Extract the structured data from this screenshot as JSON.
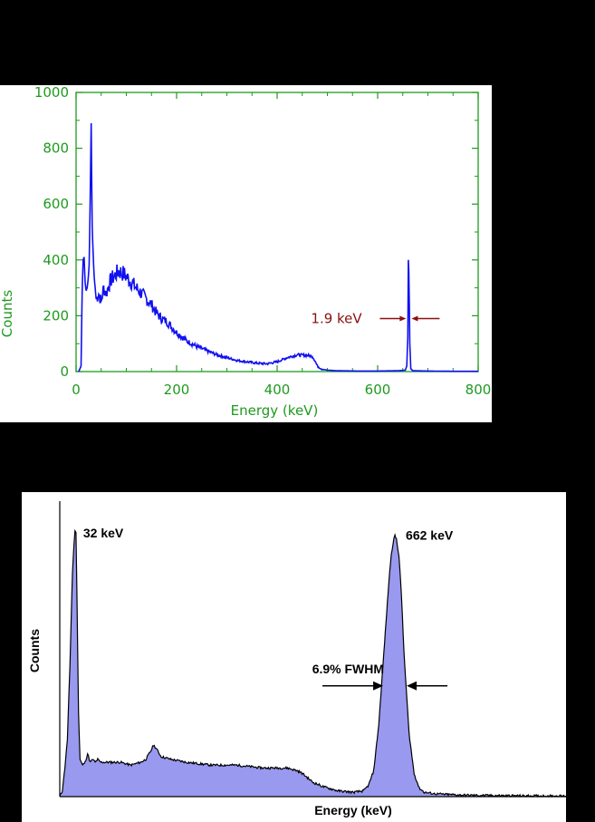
{
  "colors": {
    "background": "#000000",
    "top_axis": "#1f9a1f",
    "top_series": "#1010f0",
    "top_annotation": "#8b1010",
    "bottom_fill": "#9999f0",
    "bottom_line": "#000000"
  },
  "chart_data": [
    {
      "type": "line",
      "title": "",
      "xlabel": "Energy (keV)",
      "ylabel": "Counts",
      "xlim": [
        0,
        800
      ],
      "ylim": [
        0,
        1000
      ],
      "xticks": [
        "0",
        "200",
        "400",
        "600",
        "800"
      ],
      "yticks": [
        "0",
        "200",
        "400",
        "600",
        "800",
        "1000"
      ],
      "grid": false,
      "series": [
        {
          "x": [
            5,
            10,
            12,
            14,
            16,
            18,
            20,
            22,
            24,
            26,
            28,
            30,
            32,
            34,
            36,
            38,
            40,
            45,
            50,
            55,
            60,
            65,
            70,
            75,
            80,
            85,
            90,
            95,
            100,
            110,
            120,
            130,
            140,
            150,
            160,
            170,
            180,
            190,
            200,
            220,
            240,
            260,
            280,
            300,
            320,
            340,
            360,
            380,
            400,
            420,
            440,
            460,
            470,
            475,
            480,
            490,
            500,
            520,
            560,
            600,
            640,
            655,
            658,
            660,
            661,
            662,
            663,
            664,
            666,
            670,
            700,
            750,
            800
          ],
          "y": [
            0,
            20,
            280,
            400,
            410,
            320,
            290,
            300,
            330,
            380,
            600,
            890,
            520,
            420,
            340,
            300,
            260,
            280,
            250,
            300,
            280,
            310,
            330,
            340,
            350,
            360,
            355,
            350,
            340,
            320,
            300,
            280,
            260,
            240,
            210,
            190,
            180,
            160,
            140,
            110,
            90,
            75,
            60,
            50,
            40,
            35,
            30,
            28,
            35,
            50,
            60,
            58,
            55,
            40,
            20,
            8,
            5,
            3,
            2,
            2,
            3,
            5,
            20,
            120,
            400,
            360,
            240,
            100,
            10,
            3,
            2,
            1,
            1
          ]
        }
      ],
      "annotations": [
        {
          "text": "1.9 keV",
          "x": 662,
          "y": 190
        }
      ]
    },
    {
      "type": "area",
      "title": "",
      "xlabel": "Energy (keV)",
      "ylabel": "Counts",
      "xlim": [
        0,
        1000
      ],
      "ylim": [
        0,
        1
      ],
      "grid": false,
      "series": [
        {
          "x": [
            0,
            5,
            10,
            15,
            20,
            25,
            28,
            30,
            32,
            34,
            37,
            40,
            45,
            50,
            55,
            60,
            65,
            70,
            75,
            80,
            90,
            100,
            120,
            140,
            160,
            170,
            180,
            185,
            190,
            200,
            220,
            250,
            300,
            350,
            400,
            450,
            470,
            480,
            500,
            520,
            550,
            580,
            600,
            610,
            620,
            630,
            640,
            650,
            655,
            660,
            662,
            665,
            670,
            675,
            680,
            690,
            700,
            710,
            720,
            740,
            760,
            800,
            850,
            900,
            1000
          ],
          "y": [
            0.0,
            0.02,
            0.1,
            0.2,
            0.45,
            0.78,
            0.88,
            0.93,
            0.92,
            0.7,
            0.3,
            0.13,
            0.11,
            0.12,
            0.15,
            0.12,
            0.13,
            0.12,
            0.13,
            0.12,
            0.12,
            0.12,
            0.12,
            0.11,
            0.12,
            0.13,
            0.16,
            0.18,
            0.17,
            0.14,
            0.13,
            0.12,
            0.11,
            0.11,
            0.1,
            0.1,
            0.09,
            0.08,
            0.05,
            0.035,
            0.02,
            0.015,
            0.02,
            0.04,
            0.09,
            0.25,
            0.5,
            0.75,
            0.85,
            0.9,
            0.91,
            0.9,
            0.84,
            0.7,
            0.5,
            0.22,
            0.08,
            0.03,
            0.015,
            0.01,
            0.008,
            0.005,
            0.004,
            0.003,
            0.002
          ]
        }
      ],
      "annotations": [
        {
          "text": "32 keV",
          "x": 32,
          "y": 0.93
        },
        {
          "text": "662 keV",
          "x": 662,
          "y": 0.91
        },
        {
          "text": "6.9% FWHM",
          "x": 662,
          "y": 0.45
        }
      ]
    }
  ]
}
